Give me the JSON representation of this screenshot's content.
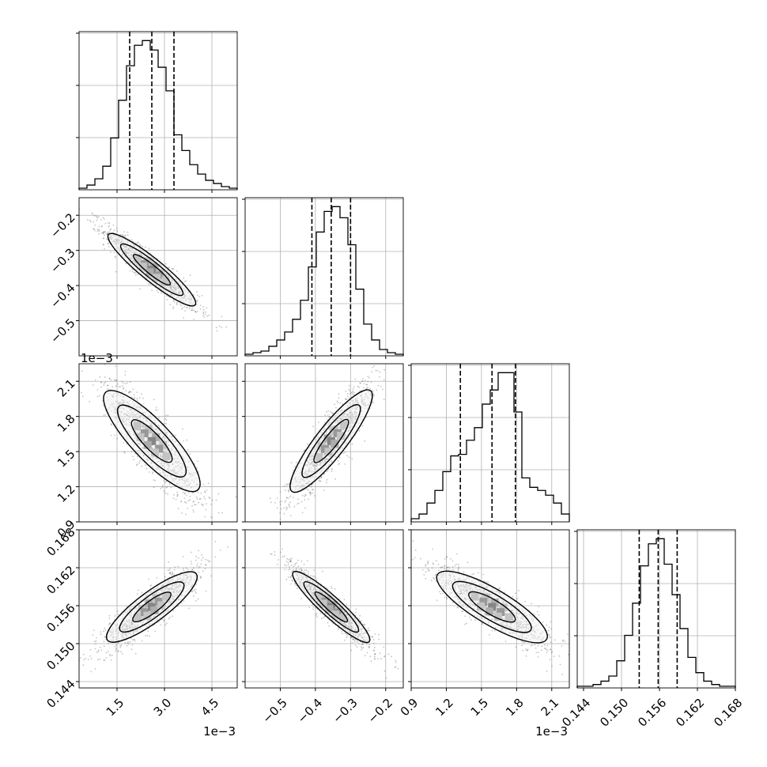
{
  "chart_data": {
    "type": "corner",
    "grid": true,
    "parameters": [
      {
        "range": [
          0.3,
          5.3
        ],
        "ticks": [
          1.5,
          3.0,
          4.5
        ],
        "tick_labels": [
          "1.5",
          "3.0",
          "4.5"
        ],
        "offset_label": "1e−3",
        "quantiles": [
          1.9,
          2.6,
          3.3
        ],
        "hist_x": [
          0.3,
          0.55,
          0.8,
          1.05,
          1.3,
          1.55,
          1.8,
          2.05,
          2.3,
          2.55,
          2.8,
          3.05,
          3.3,
          3.55,
          3.8,
          4.05,
          4.3,
          4.55,
          4.8,
          5.05,
          5.3
        ],
        "hist_counts": [
          1,
          3,
          7,
          15,
          33,
          57,
          79,
          92,
          95,
          89,
          78,
          63,
          35,
          25,
          16,
          10,
          6,
          4,
          2,
          1
        ]
      },
      {
        "range": [
          -0.6,
          -0.15
        ],
        "ticks": [
          -0.5,
          -0.4,
          -0.3,
          -0.2
        ],
        "tick_labels": [
          "−0.5",
          "−0.4",
          "−0.3",
          "−0.2"
        ],
        "offset_label": "",
        "quantiles": [
          -0.41,
          -0.355,
          -0.3
        ],
        "hist_x": [
          -0.6,
          -0.5775,
          -0.555,
          -0.5325,
          -0.51,
          -0.4875,
          -0.465,
          -0.4425,
          -0.42,
          -0.3975,
          -0.375,
          -0.3525,
          -0.33,
          -0.3075,
          -0.285,
          -0.2625,
          -0.24,
          -0.2175,
          -0.195,
          -0.1725,
          -0.15
        ],
        "hist_counts": [
          1,
          2,
          3,
          6,
          10,
          15,
          23,
          35,
          56,
          78,
          91,
          94,
          87,
          70,
          42,
          20,
          10,
          4,
          2,
          1
        ]
      },
      {
        "range": [
          0.9,
          2.25
        ],
        "ticks": [
          0.9,
          1.2,
          1.5,
          1.8,
          2.1
        ],
        "tick_labels": [
          "0.9",
          "1.2",
          "1.5",
          "1.8",
          "2.1"
        ],
        "offset_label": "1e−3",
        "quantiles": [
          1.32,
          1.59,
          1.79
        ],
        "hist_x": [
          0.9,
          0.9675,
          1.035,
          1.1025,
          1.17,
          1.2375,
          1.305,
          1.3725,
          1.44,
          1.5075,
          1.575,
          1.6425,
          1.71,
          1.7775,
          1.845,
          1.9125,
          1.98,
          2.0475,
          2.115,
          2.1825,
          2.25
        ],
        "hist_counts": [
          2,
          5,
          12,
          20,
          32,
          42,
          43,
          52,
          60,
          75,
          84,
          95,
          95,
          70,
          28,
          22,
          20,
          17,
          12,
          5
        ]
      },
      {
        "range": [
          0.143,
          0.168
        ],
        "ticks": [
          0.144,
          0.15,
          0.156,
          0.162,
          0.168
        ],
        "tick_labels": [
          "0.144",
          "0.150",
          "0.156",
          "0.162",
          "0.168"
        ],
        "offset_label": "",
        "quantiles": [
          0.1528,
          0.1558,
          0.1588
        ],
        "hist_x": [
          0.143,
          0.14425,
          0.1455,
          0.14675,
          0.148,
          0.14925,
          0.1505,
          0.15175,
          0.153,
          0.15425,
          0.1555,
          0.15675,
          0.158,
          0.15925,
          0.1605,
          0.16175,
          0.163,
          0.16425,
          0.1655,
          0.16675,
          0.168
        ],
        "hist_counts": [
          1,
          1,
          2,
          4,
          7,
          16,
          31,
          50,
          72,
          85,
          88,
          73,
          55,
          35,
          18,
          9,
          4,
          2,
          1,
          1
        ]
      }
    ],
    "pairs": [
      {
        "x": 0,
        "y": 1,
        "rho": -0.93
      },
      {
        "x": 0,
        "y": 2,
        "rho": -0.85
      },
      {
        "x": 1,
        "y": 2,
        "rho": 0.9
      },
      {
        "x": 0,
        "y": 3,
        "rho": 0.87
      },
      {
        "x": 1,
        "y": 3,
        "rho": -0.93
      },
      {
        "x": 2,
        "y": 3,
        "rho": -0.86
      }
    ]
  }
}
